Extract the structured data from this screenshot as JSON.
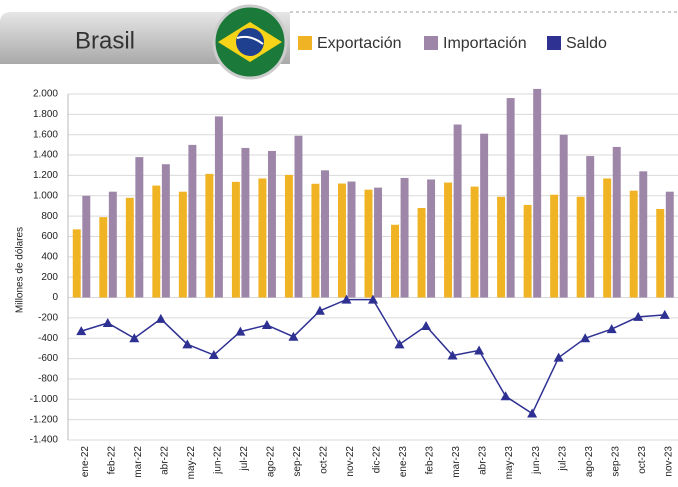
{
  "chart_data": {
    "type": "bar",
    "title": "Brasil",
    "ylabel": "Millones de dólares",
    "legend": "top",
    "grid": true,
    "categories": [
      "ene-22",
      "feb-22",
      "mar-22",
      "abr-22",
      "may-22",
      "jun-22",
      "jul-22",
      "ago-22",
      "sep-22",
      "oct-22",
      "nov-22",
      "dic-22",
      "ene-23",
      "feb-23",
      "mar-23",
      "abr-23",
      "may-23",
      "jun-23",
      "jul-23",
      "ago-23",
      "sep-23",
      "oct-23",
      "nov-23"
    ],
    "series": [
      {
        "name": "Exportación",
        "type": "bar",
        "color": "#f0b323",
        "values": [
          670,
          790,
          980,
          1100,
          1040,
          1215,
          1137,
          1170,
          1205,
          1118,
          1120,
          1060,
          715,
          880,
          1130,
          1090,
          990,
          910,
          1010,
          990,
          1170,
          1050,
          870
        ]
      },
      {
        "name": "Importación",
        "type": "bar",
        "color": "#9e86a8",
        "values": [
          1000,
          1040,
          1380,
          1310,
          1500,
          1780,
          1470,
          1440,
          1590,
          1250,
          1140,
          1080,
          1175,
          1160,
          1700,
          1610,
          1960,
          2050,
          1600,
          1390,
          1480,
          1240,
          1040
        ]
      },
      {
        "name": "Saldo",
        "type": "line",
        "color": "#2e3192",
        "values": [
          -330,
          -250,
          -400,
          -210,
          -460,
          -565,
          -335,
          -270,
          -385,
          -130,
          -20,
          -20,
          -460,
          -280,
          -570,
          -520,
          -970,
          -1140,
          -590,
          -400,
          -310,
          -190,
          -170
        ]
      }
    ],
    "ylim": [
      -1400,
      2000
    ],
    "yticks": [
      {
        "value": -1400,
        "label": "-1.400"
      },
      {
        "value": -1200,
        "label": "-1.200"
      },
      {
        "value": -1000,
        "label": "-1.000"
      },
      -800,
      -600,
      -400,
      -200,
      0,
      200,
      400,
      600,
      800,
      {
        "value": 1000,
        "label": "1.000"
      },
      {
        "value": 1200,
        "label": "1.200"
      },
      {
        "value": 1400,
        "label": "1.400"
      },
      {
        "value": 1600,
        "label": "1.600"
      },
      {
        "value": 1800,
        "label": "1.800"
      },
      {
        "value": 2000,
        "label": "2.000"
      }
    ]
  }
}
